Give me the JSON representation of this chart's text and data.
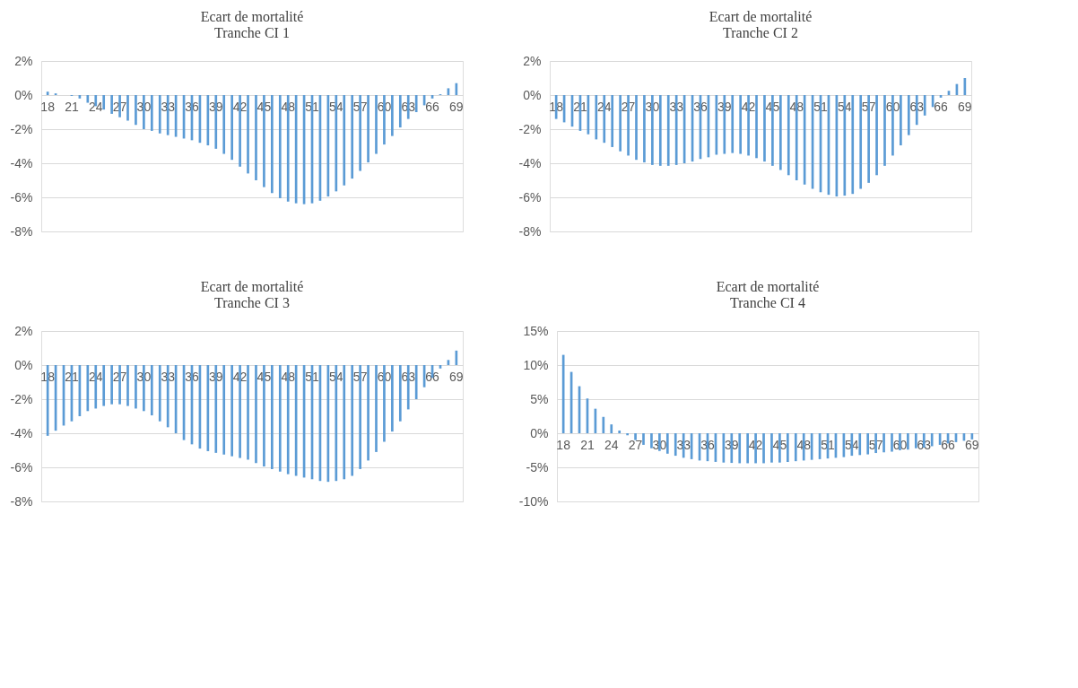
{
  "chart_data": [
    {
      "type": "bar",
      "title": "Ecart de mortalité",
      "subtitle": "Tranche CI 1",
      "categories": [
        "18",
        null,
        null,
        "21",
        null,
        null,
        "24",
        null,
        null,
        "27",
        null,
        null,
        "30",
        null,
        null,
        "33",
        null,
        null,
        "36",
        null,
        null,
        "39",
        null,
        null,
        "42",
        null,
        null,
        "45",
        null,
        null,
        "48",
        null,
        null,
        "51",
        null,
        null,
        "54",
        null,
        null,
        "57",
        null,
        null,
        "60",
        null,
        null,
        "63",
        null,
        null,
        "66",
        null,
        null,
        "69"
      ],
      "series": [
        {
          "color": "#5b9bd5",
          "values": [
            0.2,
            0.1,
            0.0,
            -0.05,
            -0.2,
            -0.45,
            -0.65,
            -0.85,
            -1.1,
            -1.3,
            -1.5,
            -1.75,
            -2.0,
            -2.1,
            -2.25,
            -2.35,
            -2.45,
            -2.55,
            -2.65,
            -2.8,
            -2.95,
            -3.15,
            -3.45,
            -3.8,
            -4.2,
            -4.6,
            -5.0,
            -5.4,
            -5.75,
            -6.05,
            -6.25,
            -6.35,
            -6.4,
            -6.35,
            -6.2,
            -5.95,
            -5.65,
            -5.3,
            -4.9,
            -4.45,
            -3.95,
            -3.45,
            -2.9,
            -2.4,
            -1.9,
            -1.4,
            -1.0,
            -0.6,
            -0.2,
            0.05,
            0.4,
            0.7
          ]
        }
      ],
      "ylim": [
        -8,
        2
      ],
      "yticks": [
        {
          "value": -8,
          "label": "-8%"
        },
        {
          "value": -6,
          "label": "-6%"
        },
        {
          "value": -4,
          "label": "-4%"
        },
        {
          "value": -2,
          "label": "-2%"
        },
        {
          "value": 0,
          "label": "0%"
        },
        {
          "value": 2,
          "label": "2%"
        }
      ],
      "grid": "y"
    },
    {
      "type": "bar",
      "title": "Ecart de mortalité",
      "subtitle": "Tranche CI 2",
      "categories": [
        "18",
        null,
        null,
        "21",
        null,
        null,
        "24",
        null,
        null,
        "27",
        null,
        null,
        "30",
        null,
        null,
        "33",
        null,
        null,
        "36",
        null,
        null,
        "39",
        null,
        null,
        "42",
        null,
        null,
        "45",
        null,
        null,
        "48",
        null,
        null,
        "51",
        null,
        null,
        "54",
        null,
        null,
        "57",
        null,
        null,
        "60",
        null,
        null,
        "63",
        null,
        null,
        "66",
        null,
        null,
        "69"
      ],
      "series": [
        {
          "color": "#5b9bd5",
          "values": [
            -1.4,
            -1.6,
            -1.85,
            -2.1,
            -2.3,
            -2.6,
            -2.8,
            -3.05,
            -3.3,
            -3.55,
            -3.8,
            -3.95,
            -4.1,
            -4.15,
            -4.15,
            -4.1,
            -4.0,
            -3.9,
            -3.75,
            -3.65,
            -3.5,
            -3.45,
            -3.4,
            -3.45,
            -3.55,
            -3.7,
            -3.9,
            -4.15,
            -4.4,
            -4.7,
            -5.0,
            -5.25,
            -5.5,
            -5.7,
            -5.85,
            -5.95,
            -5.9,
            -5.8,
            -5.5,
            -5.15,
            -4.7,
            -4.15,
            -3.55,
            -2.95,
            -2.35,
            -1.75,
            -1.2,
            -0.7,
            -0.15,
            0.25,
            0.65,
            1.0
          ]
        }
      ],
      "ylim": [
        -8,
        2
      ],
      "yticks": [
        {
          "value": -8,
          "label": "-8%"
        },
        {
          "value": -6,
          "label": "-6%"
        },
        {
          "value": -4,
          "label": "-4%"
        },
        {
          "value": -2,
          "label": "-2%"
        },
        {
          "value": 0,
          "label": "0%"
        },
        {
          "value": 2,
          "label": "2%"
        }
      ],
      "grid": "y"
    },
    {
      "type": "bar",
      "title": "Ecart de mortalité",
      "subtitle": "Tranche CI 3",
      "categories": [
        "18",
        null,
        null,
        "21",
        null,
        null,
        "24",
        null,
        null,
        "27",
        null,
        null,
        "30",
        null,
        null,
        "33",
        null,
        null,
        "36",
        null,
        null,
        "39",
        null,
        null,
        "42",
        null,
        null,
        "45",
        null,
        null,
        "48",
        null,
        null,
        "51",
        null,
        null,
        "54",
        null,
        null,
        "57",
        null,
        null,
        "60",
        null,
        null,
        "63",
        null,
        null,
        "66",
        null,
        null,
        "69"
      ],
      "series": [
        {
          "color": "#5b9bd5",
          "values": [
            -4.15,
            -3.85,
            -3.55,
            -3.3,
            -3.0,
            -2.7,
            -2.55,
            -2.4,
            -2.3,
            -2.3,
            -2.4,
            -2.55,
            -2.7,
            -2.95,
            -3.3,
            -3.65,
            -4.0,
            -4.4,
            -4.65,
            -4.9,
            -5.05,
            -5.15,
            -5.25,
            -5.35,
            -5.45,
            -5.55,
            -5.75,
            -5.95,
            -6.1,
            -6.25,
            -6.4,
            -6.5,
            -6.6,
            -6.7,
            -6.8,
            -6.85,
            -6.8,
            -6.7,
            -6.5,
            -6.1,
            -5.6,
            -5.1,
            -4.5,
            -3.9,
            -3.3,
            -2.6,
            -2.0,
            -1.3,
            -0.75,
            -0.2,
            0.3,
            0.85
          ]
        }
      ],
      "ylim": [
        -8,
        2
      ],
      "yticks": [
        {
          "value": -8,
          "label": "-8%"
        },
        {
          "value": -6,
          "label": "-6%"
        },
        {
          "value": -4,
          "label": "-4%"
        },
        {
          "value": -2,
          "label": "-2%"
        },
        {
          "value": 0,
          "label": "0%"
        },
        {
          "value": 2,
          "label": "2%"
        }
      ],
      "grid": "y"
    },
    {
      "type": "bar",
      "title": "Ecart de mortalité",
      "subtitle": "Tranche CI 4",
      "categories": [
        "18",
        null,
        null,
        "21",
        null,
        null,
        "24",
        null,
        null,
        "27",
        null,
        null,
        "30",
        null,
        null,
        "33",
        null,
        null,
        "36",
        null,
        null,
        "39",
        null,
        null,
        "42",
        null,
        null,
        "45",
        null,
        null,
        "48",
        null,
        null,
        "51",
        null,
        null,
        "54",
        null,
        null,
        "57",
        null,
        null,
        "60",
        null,
        null,
        "63",
        null,
        null,
        "66",
        null,
        null,
        "69"
      ],
      "series": [
        {
          "color": "#5b9bd5",
          "values": [
            11.5,
            9.0,
            6.9,
            5.1,
            3.6,
            2.4,
            1.3,
            0.4,
            -0.3,
            -1.0,
            -1.7,
            -2.2,
            -2.6,
            -3.0,
            -3.3,
            -3.6,
            -3.8,
            -4.0,
            -4.1,
            -4.2,
            -4.3,
            -4.35,
            -4.4,
            -4.4,
            -4.4,
            -4.4,
            -4.3,
            -4.3,
            -4.2,
            -4.1,
            -4.0,
            -3.9,
            -3.8,
            -3.7,
            -3.6,
            -3.5,
            -3.3,
            -3.2,
            -3.1,
            -2.9,
            -2.8,
            -2.7,
            -2.5,
            -2.4,
            -2.2,
            -2.1,
            -1.9,
            -1.7,
            -1.5,
            -1.3,
            -1.1,
            -0.9
          ]
        }
      ],
      "ylim": [
        -10,
        15
      ],
      "yticks": [
        {
          "value": -10,
          "label": "-10%"
        },
        {
          "value": -5,
          "label": "-5%"
        },
        {
          "value": 0,
          "label": "0%"
        },
        {
          "value": 5,
          "label": "5%"
        },
        {
          "value": 10,
          "label": "10%"
        },
        {
          "value": 15,
          "label": "15%"
        }
      ],
      "grid": "y"
    }
  ]
}
